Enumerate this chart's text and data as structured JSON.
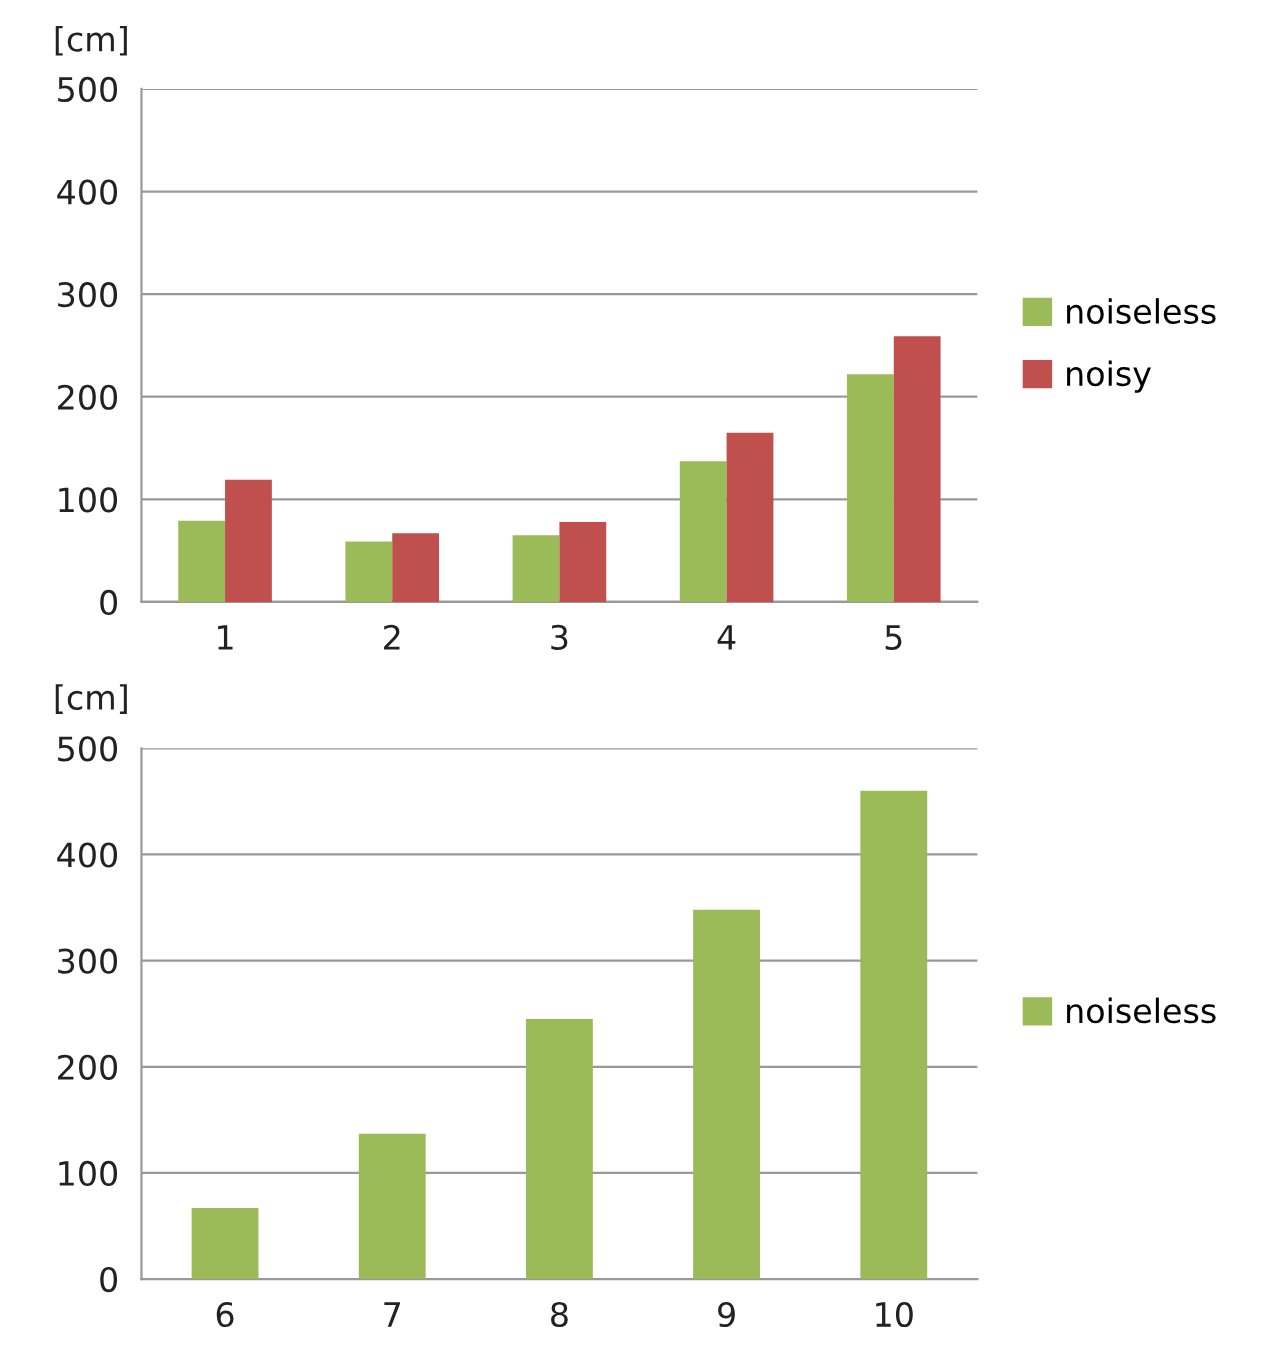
{
  "chart_data": [
    {
      "type": "bar",
      "ylabel": "[cm]",
      "categories": [
        "1",
        "2",
        "3",
        "4",
        "5"
      ],
      "series": [
        {
          "name": "noiseless",
          "color": "#9bbb59",
          "values": [
            79,
            59,
            65,
            137,
            222
          ]
        },
        {
          "name": "noisy",
          "color": "#c0504d",
          "values": [
            119,
            67,
            78,
            165,
            259
          ]
        }
      ],
      "ylim": [
        0,
        500
      ],
      "yticks": [
        0,
        100,
        200,
        300,
        400,
        500
      ],
      "grid": "y",
      "legend": "right"
    },
    {
      "type": "bar",
      "ylabel": "[cm]",
      "categories": [
        "6",
        "7",
        "8",
        "9",
        "10"
      ],
      "series": [
        {
          "name": "noiseless",
          "color": "#9bbb59",
          "values": [
            67,
            137,
            245,
            348,
            460
          ]
        }
      ],
      "ylim": [
        0,
        500
      ],
      "yticks": [
        0,
        100,
        200,
        300,
        400,
        500
      ],
      "grid": "y",
      "legend": "right"
    }
  ]
}
